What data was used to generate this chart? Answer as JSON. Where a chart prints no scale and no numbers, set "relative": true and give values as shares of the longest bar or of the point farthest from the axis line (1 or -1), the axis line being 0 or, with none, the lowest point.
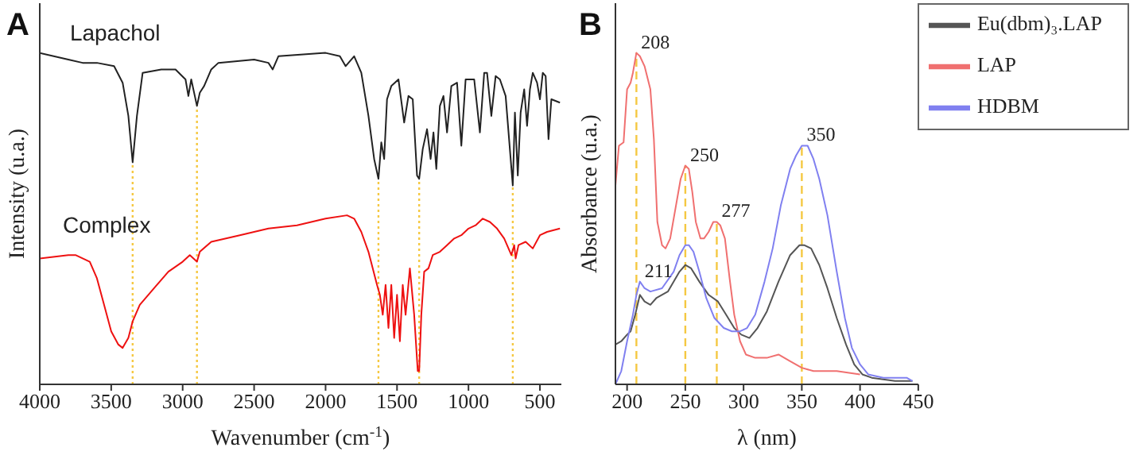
{
  "chart_data": [
    {
      "type": "line",
      "title": "A",
      "xlabel": "Wavenumber (cm$^{-1}$)",
      "ylabel": "Intensity (u.a.)",
      "relative": true,
      "xlim": [
        4000,
        350
      ],
      "xticks": [
        4000,
        3500,
        3000,
        2500,
        2000,
        1500,
        1000,
        500
      ],
      "legend": false,
      "ref_lines": [
        {
          "axis": "x",
          "value": 3350,
          "color": "#f5c842",
          "line_style": "dotted"
        },
        {
          "axis": "x",
          "value": 2900,
          "color": "#f5c842",
          "line_style": "dotted"
        },
        {
          "axis": "x",
          "value": 1630,
          "color": "#f5c842",
          "line_style": "dotted"
        },
        {
          "axis": "x",
          "value": 1345,
          "color": "#f5c842",
          "line_style": "dotted"
        },
        {
          "axis": "x",
          "value": 690,
          "color": "#f5c842",
          "line_style": "dotted"
        }
      ],
      "series": [
        {
          "name": "Lapachol",
          "color": "#222222",
          "x": [
            4000,
            3800,
            3700,
            3600,
            3480,
            3420,
            3380,
            3350,
            3320,
            3280,
            3150,
            3050,
            2980,
            2960,
            2940,
            2900,
            2880,
            2850,
            2800,
            2750,
            2500,
            2400,
            2370,
            2330,
            2000,
            1900,
            1860,
            1800,
            1750,
            1700,
            1660,
            1630,
            1610,
            1590,
            1570,
            1540,
            1490,
            1450,
            1420,
            1390,
            1360,
            1345,
            1320,
            1290,
            1265,
            1245,
            1225,
            1200,
            1175,
            1150,
            1120,
            1080,
            1050,
            1020,
            960,
            920,
            890,
            870,
            840,
            810,
            780,
            740,
            690,
            675,
            655,
            635,
            610,
            590,
            570,
            550,
            520,
            500,
            480,
            460,
            440,
            420,
            360
          ],
          "values": [
            1.0,
            0.98,
            0.97,
            0.97,
            0.96,
            0.91,
            0.81,
            0.67,
            0.81,
            0.94,
            0.95,
            0.95,
            0.92,
            0.87,
            0.92,
            0.84,
            0.88,
            0.9,
            0.95,
            0.97,
            0.98,
            0.97,
            0.95,
            0.99,
            1.0,
            0.99,
            0.96,
            0.99,
            0.94,
            0.81,
            0.68,
            0.62,
            0.73,
            0.68,
            0.86,
            0.9,
            0.92,
            0.79,
            0.87,
            0.86,
            0.63,
            0.62,
            0.71,
            0.77,
            0.68,
            0.76,
            0.65,
            0.84,
            0.87,
            0.76,
            0.9,
            0.91,
            0.72,
            0.92,
            0.92,
            0.76,
            0.94,
            0.94,
            0.81,
            0.93,
            0.92,
            0.87,
            0.6,
            0.82,
            0.63,
            0.82,
            0.89,
            0.78,
            0.89,
            0.94,
            0.91,
            0.86,
            0.94,
            0.93,
            0.74,
            0.86,
            0.85
          ]
        },
        {
          "name": "Complex",
          "color": "#ee1111",
          "x": [
            4000,
            3800,
            3750,
            3700,
            3650,
            3600,
            3550,
            3500,
            3450,
            3420,
            3380,
            3350,
            3300,
            3200,
            3100,
            3000,
            2950,
            2900,
            2880,
            2800,
            2600,
            2400,
            2200,
            2000,
            1850,
            1800,
            1750,
            1700,
            1640,
            1620,
            1600,
            1580,
            1560,
            1540,
            1520,
            1500,
            1480,
            1460,
            1440,
            1410,
            1380,
            1355,
            1345,
            1330,
            1310,
            1280,
            1250,
            1200,
            1150,
            1100,
            1050,
            1000,
            950,
            900,
            850,
            800,
            750,
            700,
            680,
            670,
            650,
            600,
            550,
            500,
            450,
            360
          ],
          "values": [
            0.38,
            0.39,
            0.39,
            0.38,
            0.37,
            0.32,
            0.24,
            0.16,
            0.12,
            0.11,
            0.14,
            0.19,
            0.24,
            0.29,
            0.34,
            0.37,
            0.39,
            0.37,
            0.4,
            0.43,
            0.45,
            0.47,
            0.48,
            0.5,
            0.51,
            0.5,
            0.46,
            0.4,
            0.3,
            0.27,
            0.21,
            0.3,
            0.17,
            0.3,
            0.14,
            0.27,
            0.13,
            0.3,
            0.21,
            0.35,
            0.21,
            0.04,
            0.04,
            0.21,
            0.34,
            0.35,
            0.39,
            0.4,
            0.42,
            0.44,
            0.45,
            0.47,
            0.48,
            0.5,
            0.49,
            0.47,
            0.44,
            0.39,
            0.42,
            0.38,
            0.42,
            0.43,
            0.41,
            0.45,
            0.46,
            0.47
          ]
        }
      ]
    },
    {
      "type": "line",
      "title": "B",
      "xlabel": "λ (nm)",
      "ylabel": "Absorbance (u.a.)",
      "relative": true,
      "xlim": [
        190,
        450
      ],
      "xticks": [
        200,
        250,
        300,
        350,
        400,
        450
      ],
      "legend": "top right",
      "ref_lines": [
        {
          "axis": "x",
          "value": 208,
          "color": "#f5c842",
          "line_style": "dashed"
        },
        {
          "axis": "x",
          "value": 250,
          "color": "#f5c842",
          "line_style": "dashed"
        },
        {
          "axis": "x",
          "value": 277,
          "color": "#f5c842",
          "line_style": "dashed"
        },
        {
          "axis": "x",
          "value": 350,
          "color": "#f5c842",
          "line_style": "dashed"
        }
      ],
      "annotations": [
        {
          "text": "208",
          "x": 208,
          "y": 1.0
        },
        {
          "text": "250",
          "x": 250,
          "y": 0.66
        },
        {
          "text": "277",
          "x": 277,
          "y": 0.49
        },
        {
          "text": "350",
          "x": 350,
          "y": 0.72
        },
        {
          "text": "211",
          "x": 211,
          "y": 0.31
        }
      ],
      "series": [
        {
          "name": "Eu(dbm)₃.LAP",
          "color": "#555555",
          "x": [
            190,
            195,
            200,
            203,
            207,
            211,
            215,
            220,
            225,
            235,
            245,
            250,
            255,
            262,
            270,
            278,
            285,
            292,
            298,
            305,
            312,
            320,
            330,
            340,
            348,
            352,
            358,
            365,
            372,
            380,
            388,
            395,
            402,
            410,
            430,
            445
          ],
          "values": [
            0.12,
            0.13,
            0.15,
            0.16,
            0.21,
            0.27,
            0.25,
            0.24,
            0.26,
            0.28,
            0.34,
            0.36,
            0.35,
            0.31,
            0.27,
            0.25,
            0.21,
            0.17,
            0.15,
            0.14,
            0.17,
            0.22,
            0.31,
            0.39,
            0.42,
            0.42,
            0.41,
            0.36,
            0.29,
            0.2,
            0.12,
            0.06,
            0.03,
            0.02,
            0.01,
            0.01
          ]
        },
        {
          "name": "LAP",
          "color": "#f07070",
          "x": [
            190,
            193,
            197,
            200,
            203,
            205,
            208,
            211,
            215,
            220,
            223,
            226,
            230,
            233,
            237,
            242,
            246,
            250,
            253,
            256,
            259,
            263,
            266,
            270,
            274,
            277,
            280,
            284,
            288,
            292,
            297,
            302,
            310,
            320,
            330,
            340,
            350,
            360,
            380,
            400
          ],
          "values": [
            0.6,
            0.72,
            0.73,
            0.89,
            0.91,
            0.94,
            1.0,
            0.99,
            0.96,
            0.89,
            0.74,
            0.49,
            0.42,
            0.41,
            0.44,
            0.54,
            0.62,
            0.66,
            0.65,
            0.58,
            0.49,
            0.44,
            0.44,
            0.46,
            0.49,
            0.49,
            0.48,
            0.44,
            0.32,
            0.21,
            0.13,
            0.09,
            0.08,
            0.08,
            0.09,
            0.07,
            0.05,
            0.04,
            0.04,
            0.03
          ]
        },
        {
          "name": "HDBM",
          "color": "#8080f0",
          "x": [
            190,
            195,
            200,
            205,
            208,
            211,
            215,
            220,
            230,
            240,
            245,
            250,
            253,
            257,
            262,
            268,
            275,
            283,
            290,
            297,
            303,
            310,
            318,
            325,
            332,
            340,
            345,
            350,
            355,
            360,
            365,
            372,
            380,
            387,
            393,
            400,
            407,
            420,
            440,
            445
          ],
          "values": [
            0,
            0.04,
            0.13,
            0.21,
            0.27,
            0.31,
            0.29,
            0.28,
            0.29,
            0.34,
            0.39,
            0.42,
            0.42,
            0.4,
            0.34,
            0.26,
            0.2,
            0.17,
            0.16,
            0.16,
            0.17,
            0.21,
            0.31,
            0.41,
            0.54,
            0.65,
            0.69,
            0.72,
            0.72,
            0.68,
            0.62,
            0.51,
            0.34,
            0.2,
            0.11,
            0.06,
            0.03,
            0.02,
            0.02,
            0.01
          ]
        }
      ]
    }
  ]
}
